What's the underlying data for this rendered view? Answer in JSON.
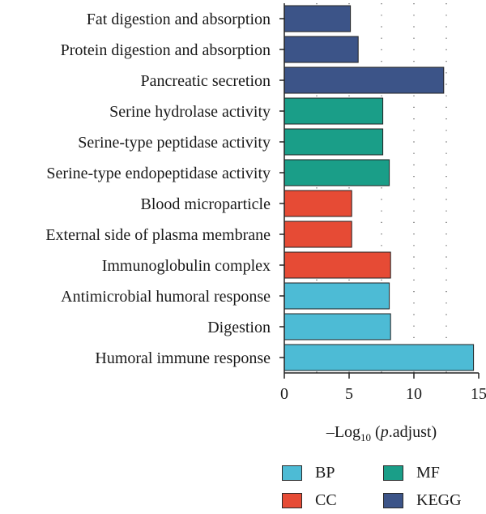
{
  "chart_data": {
    "type": "bar",
    "orientation": "horizontal",
    "categories": [
      "Fat digestion and absorption",
      "Protein digestion and absorption",
      "Pancreatic secretion",
      "Serine hydrolase activity",
      "Serine-type peptidase activity",
      "Serine-type endopeptidase activity",
      "Blood microparticle",
      "External side of plasma membrane",
      "Immunoglobulin complex",
      "Antimicrobial humoral response",
      "Digestion",
      "Humoral immune response"
    ],
    "values": [
      5.1,
      5.7,
      12.3,
      7.6,
      7.6,
      8.1,
      5.2,
      5.2,
      8.2,
      8.1,
      8.2,
      14.6
    ],
    "groups": [
      "KEGG",
      "KEGG",
      "KEGG",
      "MF",
      "MF",
      "MF",
      "CC",
      "CC",
      "CC",
      "BP",
      "BP",
      "BP"
    ],
    "colors": {
      "BP": "#4dbbd5",
      "CC": "#e64b35",
      "MF": "#1a9e88",
      "KEGG": "#3c5488"
    },
    "xlabel_main": "–Log",
    "xlabel_sub": "10",
    "xlabel_rest": " (",
    "xlabel_italic": "p",
    "xlabel_end": ".adjust)",
    "xlim": [
      0,
      15
    ],
    "xticks": [
      "0",
      "5",
      "10",
      "15"
    ],
    "grid": "dotted vertical",
    "legend": [
      {
        "label": "BP",
        "color": "#4dbbd5"
      },
      {
        "label": "MF",
        "color": "#1a9e88"
      },
      {
        "label": "CC",
        "color": "#e64b35"
      },
      {
        "label": "KEGG",
        "color": "#3c5488"
      }
    ],
    "legend_position": "bottom"
  }
}
